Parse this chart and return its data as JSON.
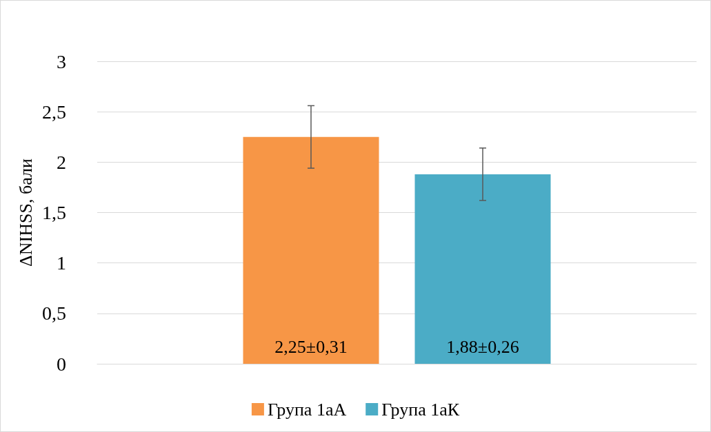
{
  "chart_data": {
    "type": "bar",
    "ylabel": "ΔNIHSS, бали",
    "categories": [
      null
    ],
    "series": [
      {
        "name": "Група 1аА",
        "color": "#f79646",
        "values": [
          2.25
        ],
        "errors": [
          0.31
        ],
        "value_labels": [
          "2,25±0,31"
        ]
      },
      {
        "name": "Група 1аК",
        "color": "#4bacc6",
        "values": [
          1.88
        ],
        "errors": [
          0.26
        ],
        "value_labels": [
          "1,88±0,26"
        ]
      }
    ],
    "ylim": [
      0,
      3
    ],
    "yticks": [
      0,
      {
        "value": 0.5,
        "label": "0,5"
      },
      1,
      {
        "value": 1.5,
        "label": "1,5"
      },
      2,
      {
        "value": 2.5,
        "label": "2,5"
      },
      3
    ],
    "grid": "y",
    "legend": "bottom"
  }
}
